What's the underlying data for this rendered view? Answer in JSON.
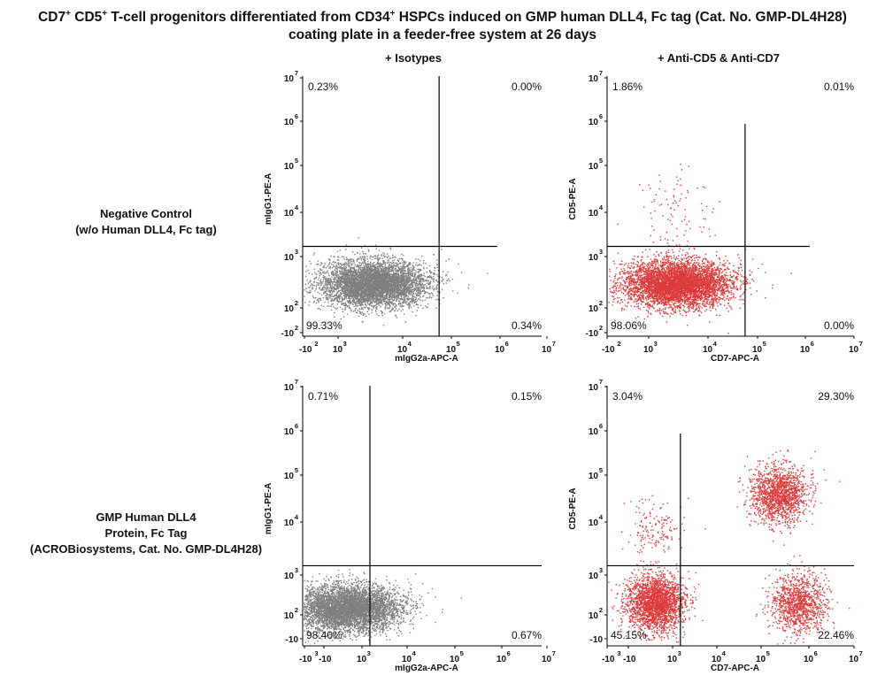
{
  "title": {
    "line1_a": "CD7",
    "line1_sup1": "+",
    "line1_b": " CD5",
    "line1_sup2": "+",
    "line1_c": " T-cell progenitors differentiated from CD34",
    "line1_sup3": "+",
    "line1_d": " HSPCs induced on GMP human DLL4, Fc tag (Cat. No. GMP-DL4H28)",
    "line2": "coating plate in a feeder-free system at 26 days"
  },
  "columns": [
    "+ Isotypes",
    "+ Anti-CD5 & Anti-CD7"
  ],
  "rows": [
    {
      "lines": [
        "Negative Control",
        "(w/o Human DLL4, Fc tag)"
      ]
    },
    {
      "lines": [
        "GMP Human DLL4",
        "Protein, Fc Tag",
        "(ACROBiosystems, Cat. No. GMP-DL4H28)"
      ]
    }
  ],
  "chart_data": [
    {
      "type": "scatter",
      "panel": "Negative Control / + Isotypes",
      "xlabel": "mIgG2a-APC-A",
      "ylabel": "mIgG1-PE-A",
      "x_axis": {
        "scale": "biexponential",
        "ticks": [
          "-10^2",
          "10^3",
          "10^4",
          "10^5",
          "10^6",
          "10^7"
        ]
      },
      "y_axis": {
        "scale": "biexponential",
        "ticks": [
          "-10^2",
          "10^2",
          "10^3",
          "10^4",
          "10^5",
          "10^6",
          "10^7"
        ]
      },
      "color": "#7f7f7f",
      "gate": {
        "x": 56000,
        "y": 1700
      },
      "quadrants": {
        "upper_left": "0.23%",
        "upper_right": "0.00%",
        "lower_left": "99.33%",
        "lower_right": "0.34%"
      },
      "populations": [
        {
          "name": "main",
          "x_center": 3500,
          "y_center": 300,
          "share": 0.996
        }
      ]
    },
    {
      "type": "scatter",
      "panel": "Negative Control / + Anti-CD5 & Anti-CD7",
      "xlabel": "CD7-APC-A",
      "ylabel": "CD5-PE-A",
      "x_axis": {
        "scale": "biexponential",
        "ticks": [
          "-10^2",
          "10^3",
          "10^4",
          "10^5",
          "10^6",
          "10^7"
        ]
      },
      "y_axis": {
        "scale": "biexponential",
        "ticks": [
          "-10^2",
          "10^2",
          "10^3",
          "10^4",
          "10^5",
          "10^6",
          "10^7"
        ]
      },
      "color": "#dc3b3b",
      "gate": {
        "x": 56000,
        "y": 1700
      },
      "quadrants": {
        "upper_left": "1.86%",
        "upper_right": "0.01%",
        "lower_left": "98.06%",
        "lower_right": "0.00%"
      },
      "populations": [
        {
          "name": "main",
          "x_center": 3000,
          "y_center": 300,
          "share": 0.98
        },
        {
          "name": "CD5-low tail",
          "x_center": 3000,
          "y_center": 8000,
          "share": 0.02
        }
      ]
    },
    {
      "type": "scatter",
      "panel": "GMP Human DLL4 / + Isotypes",
      "xlabel": "mIgG2a-APC-A",
      "ylabel": "mIgG1-PE-A",
      "x_axis": {
        "scale": "biexponential",
        "ticks": [
          "-10^3",
          "-10",
          "10^3",
          "10^4",
          "10^5",
          "10^6",
          "10^7"
        ]
      },
      "y_axis": {
        "scale": "biexponential",
        "ticks": [
          "-10",
          "10^2",
          "10^3",
          "10^4",
          "10^5",
          "10^6",
          "10^7"
        ]
      },
      "color": "#7f7f7f",
      "gate": {
        "x": 1500,
        "y": 1500
      },
      "quadrants": {
        "upper_left": "0.71%",
        "upper_right": "0.15%",
        "lower_left": "98.40%",
        "lower_right": "0.67%"
      },
      "populations": [
        {
          "name": "main",
          "x_center": 50,
          "y_center": 150,
          "share": 0.99
        }
      ]
    },
    {
      "type": "scatter",
      "panel": "GMP Human DLL4 / + Anti-CD5 & Anti-CD7",
      "xlabel": "CD7-APC-A",
      "ylabel": "CD5-PE-A",
      "x_axis": {
        "scale": "biexponential",
        "ticks": [
          "-10^3",
          "-10",
          "10^3",
          "10^4",
          "10^5",
          "10^6",
          "10^7"
        ]
      },
      "y_axis": {
        "scale": "biexponential",
        "ticks": [
          "-10",
          "10^2",
          "10^3",
          "10^4",
          "10^5",
          "10^6",
          "10^7"
        ]
      },
      "color": "#dc3b3b",
      "gate": {
        "x": 1500,
        "y": 1500
      },
      "quadrants": {
        "upper_left": "3.04%",
        "upper_right": "29.30%",
        "lower_left": "45.15%",
        "lower_right": "22.46%"
      },
      "populations": [
        {
          "name": "CD7-CD5-",
          "x_center": 50,
          "y_center": 200,
          "share": 0.45
        },
        {
          "name": "CD7+CD5+",
          "x_center": 230000,
          "y_center": 40000,
          "share": 0.29
        },
        {
          "name": "CD7+CD5-",
          "x_center": 600000,
          "y_center": 200,
          "share": 0.22
        },
        {
          "name": "CD7-CD5+",
          "x_center": 40,
          "y_center": 8000,
          "share": 0.03
        }
      ]
    }
  ]
}
